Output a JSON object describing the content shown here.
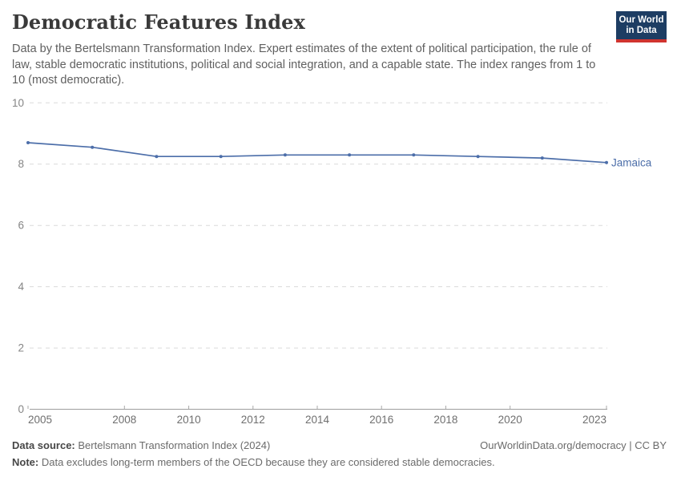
{
  "header": {
    "title": "Democratic Features Index",
    "subtitle": "Data by the Bertelsmann Transformation Index. Expert estimates of the extent of political participation, the rule of law, stable democratic institutions, political and social integration, and a capable state. The index ranges from 1 to 10 (most democratic).",
    "logo": {
      "line1": "Our World",
      "line2": "in Data"
    }
  },
  "chart_data": {
    "type": "line",
    "title": "Democratic Features Index",
    "x": [
      2005,
      2007,
      2009,
      2011,
      2013,
      2015,
      2017,
      2019,
      2021,
      2023
    ],
    "series": [
      {
        "name": "Jamaica",
        "color": "#4C6EA9",
        "values": [
          8.7,
          8.55,
          8.25,
          8.25,
          8.3,
          8.3,
          8.3,
          8.25,
          8.2,
          8.05
        ]
      }
    ],
    "xlim": [
      2005,
      2023
    ],
    "ylim": [
      0,
      10
    ],
    "x_ticks": [
      2005,
      2008,
      2010,
      2012,
      2014,
      2016,
      2018,
      2020,
      2023
    ],
    "y_ticks": [
      0,
      2,
      4,
      6,
      8,
      10
    ],
    "grid": "horizontal-dashed",
    "legend_position": "end-of-line-label"
  },
  "footer": {
    "source_label": "Data source:",
    "source_text": "Bertelsmann Transformation Index (2024)",
    "rights_text": "OurWorldinData.org/democracy | CC BY",
    "note_label": "Note:",
    "note_text": "Data excludes long-term members of the OECD because they are considered stable democracies."
  },
  "colors": {
    "series_blue": "#4C6EA9",
    "title_text": "#3A3A3A",
    "subtitle_text": "#606060",
    "grid_line": "#DADADA",
    "axis_line": "#9E9E9E",
    "y_tick_text": "#858585",
    "x_tick_text": "#6F6F6F",
    "footer_text": "#6B6B6B",
    "logo_navy": "#1D3D63",
    "logo_red": "#D0342F"
  }
}
